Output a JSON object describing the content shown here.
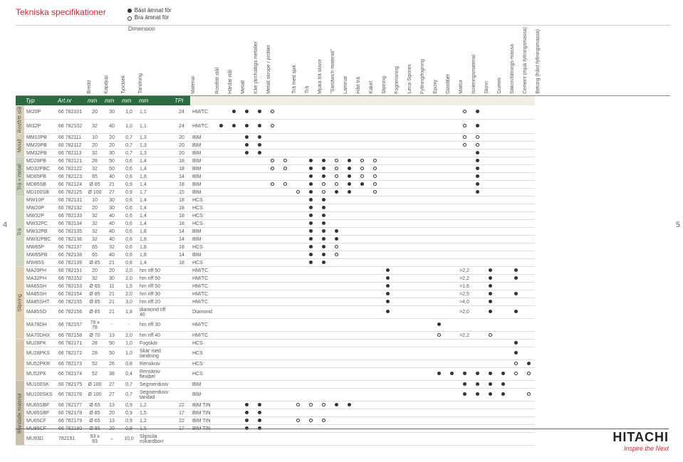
{
  "title": "Tekniska specifikationer",
  "legend": {
    "best": "Bäst ämnat för",
    "good": "Bra ämnat för"
  },
  "dimension_label": "Dimension",
  "page_left": "4",
  "page_right": "5",
  "logo": {
    "name": "HITACHI",
    "tag": "Inspire the Next"
  },
  "headers": {
    "dim": [
      "Bredd",
      "Kapdjup",
      "Tjocklek",
      "Tandning"
    ],
    "tpi": "",
    "material": "Material",
    "cols": [
      "Rostfritt stål",
      "Härdat stål",
      "Metall",
      "Icke järnhaltiga metaller",
      "Metall skrope / profiler",
      "",
      "Trä med spik",
      "Trä",
      "Mjuka trä skivor",
      "\"Sandwich-material\"",
      "Laminat",
      "Hårt trä",
      "Kakel",
      "Slipning",
      "Fogrensning",
      "Leca-Siporex",
      "Fyllning/fogning",
      "Epoxy",
      "Glasfiber",
      "Mattor",
      "Isoleringsmaterial",
      "Skinn",
      "Gummi",
      "Silikon/tätnings-massa",
      "Cement (mjuk fyllningsmassa)",
      "Betong (hård fyllningsmassa)"
    ]
  },
  "typerow": {
    "typ": "Typ",
    "art": "Art.nr",
    "u": [
      "mm",
      "mm",
      "mm",
      "mm",
      "TPI"
    ]
  },
  "cats": [
    "Rostfritt stål",
    "Metall",
    "Trä + metall",
    "Trä",
    "Slipning",
    "",
    "Blandade material"
  ],
  "rows": [
    {
      "cat": 0,
      "n": "MI20P",
      "a": "66 782101",
      "d": [
        "20",
        "30",
        "1,0",
        "1,1",
        "24"
      ],
      "m": "HM/TC",
      "marks": {
        "2": "d",
        "3": "d",
        "4": "d",
        "5": "o",
        "20": "o",
        "21": "d"
      }
    },
    {
      "cat": 0,
      "n": "MI32P",
      "a": "66 782102",
      "d": [
        "32",
        "40",
        "1,0",
        "1,1",
        "24"
      ],
      "m": "HM/TC",
      "marks": {
        "1": "d",
        "2": "d",
        "3": "d",
        "4": "d",
        "5": "o",
        "20": "o",
        "21": "d"
      }
    },
    {
      "cat": 1,
      "n": "MM10PB",
      "a": "66 782111",
      "d": [
        "10",
        "20",
        "0,7",
        "1,3",
        "20"
      ],
      "m": "BIM",
      "marks": {
        "3": "d",
        "4": "d",
        "20": "o",
        "21": "o"
      }
    },
    {
      "cat": 1,
      "n": "MM20PB",
      "a": "66 782112",
      "d": [
        "20",
        "20",
        "0,7",
        "1,3",
        "20"
      ],
      "m": "BIM",
      "marks": {
        "3": "d",
        "4": "d",
        "20": "o",
        "21": "o"
      }
    },
    {
      "cat": 1,
      "n": "MM32PB",
      "a": "66 782113",
      "d": [
        "32",
        "30",
        "0,7",
        "1,3",
        "20"
      ],
      "m": "BIM",
      "marks": {
        "3": "d",
        "4": "d",
        "21": "d"
      }
    },
    {
      "cat": 2,
      "n": "MD28PB",
      "a": "66 782121",
      "d": [
        "28",
        "50",
        "0,6",
        "1,4",
        "18"
      ],
      "m": "BIM",
      "marks": {
        "5": "o",
        "6": "o",
        "8": "d",
        "9": "d",
        "10": "o",
        "11": "d",
        "12": "o",
        "13": "o",
        "21": "d"
      }
    },
    {
      "cat": 2,
      "n": "MD32PBC",
      "a": "66 782122",
      "d": [
        "32",
        "50",
        "0,6",
        "1,4",
        "18"
      ],
      "m": "BIM",
      "marks": {
        "5": "o",
        "6": "o",
        "8": "d",
        "9": "d",
        "10": "o",
        "11": "d",
        "12": "o",
        "13": "o",
        "21": "d"
      }
    },
    {
      "cat": 2,
      "n": "MD65PB",
      "a": "66 782123",
      "d": [
        "65",
        "40",
        "0,6",
        "1,8",
        "14"
      ],
      "m": "BIM",
      "marks": {
        "8": "d",
        "9": "d",
        "10": "o",
        "11": "d",
        "12": "o",
        "13": "o",
        "21": "d"
      }
    },
    {
      "cat": 2,
      "n": "MD85SB",
      "a": "66 782124",
      "d": [
        "Ø 85",
        "21",
        "0,9",
        "1,4",
        "18"
      ],
      "m": "BIM",
      "marks": {
        "5": "o",
        "6": "o",
        "8": "d",
        "9": "o",
        "10": "o",
        "11": "d",
        "12": "d",
        "13": "o",
        "21": "d"
      }
    },
    {
      "cat": 2,
      "n": "MD100SB",
      "a": "66 782125",
      "d": [
        "Ø 100",
        "27",
        "0,9",
        "1,7",
        "15"
      ],
      "m": "BIM",
      "marks": {
        "7": "o",
        "8": "d",
        "9": "o",
        "10": "d",
        "11": "d",
        "13": "o",
        "21": "d"
      }
    },
    {
      "cat": 3,
      "n": "MW10P",
      "a": "66 782131",
      "d": [
        "10",
        "30",
        "0,6",
        "1,4",
        "18"
      ],
      "m": "HCS",
      "marks": {
        "8": "d",
        "9": "d"
      }
    },
    {
      "cat": 3,
      "n": "MW20P",
      "a": "66 782132",
      "d": [
        "20",
        "30",
        "0,6",
        "1,4",
        "18"
      ],
      "m": "HCS",
      "marks": {
        "8": "d",
        "9": "d"
      }
    },
    {
      "cat": 3,
      "n": "MW32P",
      "a": "66 782133",
      "d": [
        "32",
        "40",
        "0,6",
        "1,4",
        "18"
      ],
      "m": "HCS",
      "marks": {
        "8": "d",
        "9": "d"
      }
    },
    {
      "cat": 3,
      "n": "MW32PC",
      "a": "66 782134",
      "d": [
        "32",
        "40",
        "0,6",
        "1,4",
        "18"
      ],
      "m": "HCS",
      "marks": {
        "8": "d",
        "9": "d"
      }
    },
    {
      "cat": 3,
      "n": "MW32PB",
      "a": "66 782135",
      "d": [
        "32",
        "40",
        "0,6",
        "1,8",
        "14"
      ],
      "m": "BIM",
      "marks": {
        "8": "d",
        "9": "d",
        "10": "d"
      }
    },
    {
      "cat": 3,
      "n": "MW32PBC",
      "a": "66 782136",
      "d": [
        "32",
        "40",
        "0,6",
        "1,8",
        "14"
      ],
      "m": "BIM",
      "marks": {
        "8": "d",
        "9": "d",
        "10": "d"
      }
    },
    {
      "cat": 3,
      "n": "MW65P",
      "a": "66 782137",
      "d": [
        "65",
        "32",
        "0,6",
        "1,8",
        "18"
      ],
      "m": "HCS",
      "marks": {
        "8": "d",
        "9": "d",
        "10": "o"
      }
    },
    {
      "cat": 3,
      "n": "MW65PB",
      "a": "66 782138",
      "d": [
        "65",
        "40",
        "0,6",
        "1,8",
        "14"
      ],
      "m": "BIM",
      "marks": {
        "8": "d",
        "9": "d",
        "10": "o"
      }
    },
    {
      "cat": 3,
      "n": "MW85S",
      "a": "66 782139",
      "d": [
        "Ø 85",
        "21",
        "0,6",
        "1,4",
        "18"
      ],
      "m": "HCS",
      "marks": {
        "8": "d",
        "9": "d"
      }
    },
    {
      "cat": 4,
      "n": "MA20PH",
      "a": "66 782151",
      "d": [
        "20",
        "20",
        "2,0",
        "hm riff 50",
        ""
      ],
      "m": "HM/TC",
      "marks": {
        "14": "d",
        "20": ">2,2",
        "22": "d",
        "24": "d"
      }
    },
    {
      "cat": 4,
      "n": "MA32PH",
      "a": "66 782152",
      "d": [
        "32",
        "30",
        "2,0",
        "hm riff 50",
        ""
      ],
      "m": "HM/TC",
      "marks": {
        "14": "d",
        "20": ">2,2",
        "22": "d",
        "24": "d"
      }
    },
    {
      "cat": 4,
      "n": "MA65SH",
      "a": "66 782153",
      "d": [
        "Ø 65",
        "11",
        "1,5",
        "hm riff 50",
        ""
      ],
      "m": "HM/TC",
      "marks": {
        "14": "d",
        "20": ">1,6",
        "22": "d"
      }
    },
    {
      "cat": 4,
      "n": "MA85SH",
      "a": "66 782154",
      "d": [
        "Ø 85",
        "21",
        "2,0",
        "hm riff 30",
        ""
      ],
      "m": "HM/TC",
      "marks": {
        "14": "d",
        "20": ">2,5",
        "22": "d",
        "24": "d"
      }
    },
    {
      "cat": 4,
      "n": "MA85SHT",
      "a": "66 782155",
      "d": [
        "Ø 85",
        "21",
        "3,0",
        "hm riff 20",
        ""
      ],
      "m": "HM/TC",
      "marks": {
        "14": "d",
        "20": ">4,0",
        "22": "d"
      }
    },
    {
      "cat": 4,
      "n": "MA85SD",
      "a": "66 782156",
      "d": [
        "Ø 85",
        "21",
        "1,8",
        "diamond riff 40",
        ""
      ],
      "m": "Diamond",
      "marks": {
        "14": "d",
        "20": ">2,0",
        "22": "d",
        "24": "d"
      }
    },
    {
      "cat": 4,
      "n": "MA78DH",
      "a": "66 782157",
      "d": [
        "78 x 78",
        "-",
        "-",
        "hm riff 30",
        ""
      ],
      "m": "HM/TC",
      "marks": {
        "18": "d"
      }
    },
    {
      "cat": 4,
      "n": "MA70DHX",
      "a": "66 782158",
      "d": [
        "Ø 70",
        "13",
        "2,0",
        "hm riff 40",
        ""
      ],
      "m": "HM/TC",
      "marks": {
        "18": "o",
        "20": ">2,2",
        "22": "o"
      }
    },
    {
      "cat": 5,
      "n": "MU28PK",
      "a": "66 782171",
      "d": [
        "28",
        "50",
        "1,0",
        "Fogskär",
        ""
      ],
      "m": "HCS",
      "marks": {
        "24": "d"
      }
    },
    {
      "cat": 5,
      "n": "MU28PKS",
      "a": "66 782172",
      "d": [
        "28",
        "50",
        "1,0",
        "Skär med tandning",
        ""
      ],
      "m": "HCS",
      "marks": {
        "24": "d"
      }
    },
    {
      "cat": 5,
      "n": "MU52PKR",
      "a": "66 782173",
      "d": [
        "52",
        "26",
        "0,8",
        "Renskniv",
        ""
      ],
      "m": "HCS",
      "marks": {
        "24": "o",
        "25": "d"
      }
    },
    {
      "cat": 5,
      "n": "MU52PK",
      "a": "66 782174",
      "d": [
        "52",
        "38",
        "0,4",
        "Renskniv flexibel",
        ""
      ],
      "m": "HCS",
      "marks": {
        "18": "d",
        "19": "d",
        "20": "d",
        "21": "d",
        "22": "d",
        "23": "d",
        "24": "o",
        "25": "o"
      }
    },
    {
      "cat": 6,
      "n": "MU100SK",
      "a": "66 782175",
      "d": [
        "Ø 100",
        "27",
        "0,7",
        "Segmentkniv",
        ""
      ],
      "m": "BIM",
      "marks": {
        "20": "d",
        "21": "d",
        "22": "d",
        "23": "d"
      }
    },
    {
      "cat": 6,
      "n": "MU100SKS",
      "a": "66 782176",
      "d": [
        "Ø 100",
        "27",
        "0,7",
        "Segmentkniv tandad",
        ""
      ],
      "m": "BIM",
      "marks": {
        "20": "d",
        "21": "d",
        "22": "d",
        "23": "d",
        "25": "o"
      }
    },
    {
      "cat": 6,
      "n": "MU65SBF",
      "a": "66 782177",
      "d": [
        "Ø 65",
        "13",
        "0,9",
        "1,2",
        "22"
      ],
      "m": "BIM TIN",
      "marks": {
        "3": "d",
        "4": "d",
        "7": "o",
        "8": "o",
        "9": "o",
        "10": "d",
        "11": "d"
      }
    },
    {
      "cat": 6,
      "n": "MU85SBF",
      "a": "66 782178",
      "d": [
        "Ø 85",
        "20",
        "0,9",
        "1,5",
        "17"
      ],
      "m": "BIM TIN",
      "marks": {
        "3": "d",
        "4": "d"
      }
    },
    {
      "cat": 6,
      "n": "MU65CF",
      "a": "66 782179",
      "d": [
        "Ø 65",
        "13",
        "0,9",
        "1,2",
        "22"
      ],
      "m": "BIM TIN",
      "marks": {
        "3": "d",
        "4": "d",
        "7": "o",
        "8": "o",
        "9": "o"
      }
    },
    {
      "cat": 6,
      "n": "MU85CF",
      "a": "66 782180",
      "d": [
        "Ø 85",
        "20",
        "0,9",
        "1,5",
        "17"
      ],
      "m": "BIM TIN",
      "marks": {
        "3": "d",
        "4": "d"
      }
    },
    {
      "cat": 6,
      "n": "MU93D",
      "a": "782191",
      "d": [
        "93 x 93",
        "–",
        "10,0",
        "Slipsula m/kardborr",
        ""
      ],
      "m": "",
      "marks": {}
    }
  ]
}
